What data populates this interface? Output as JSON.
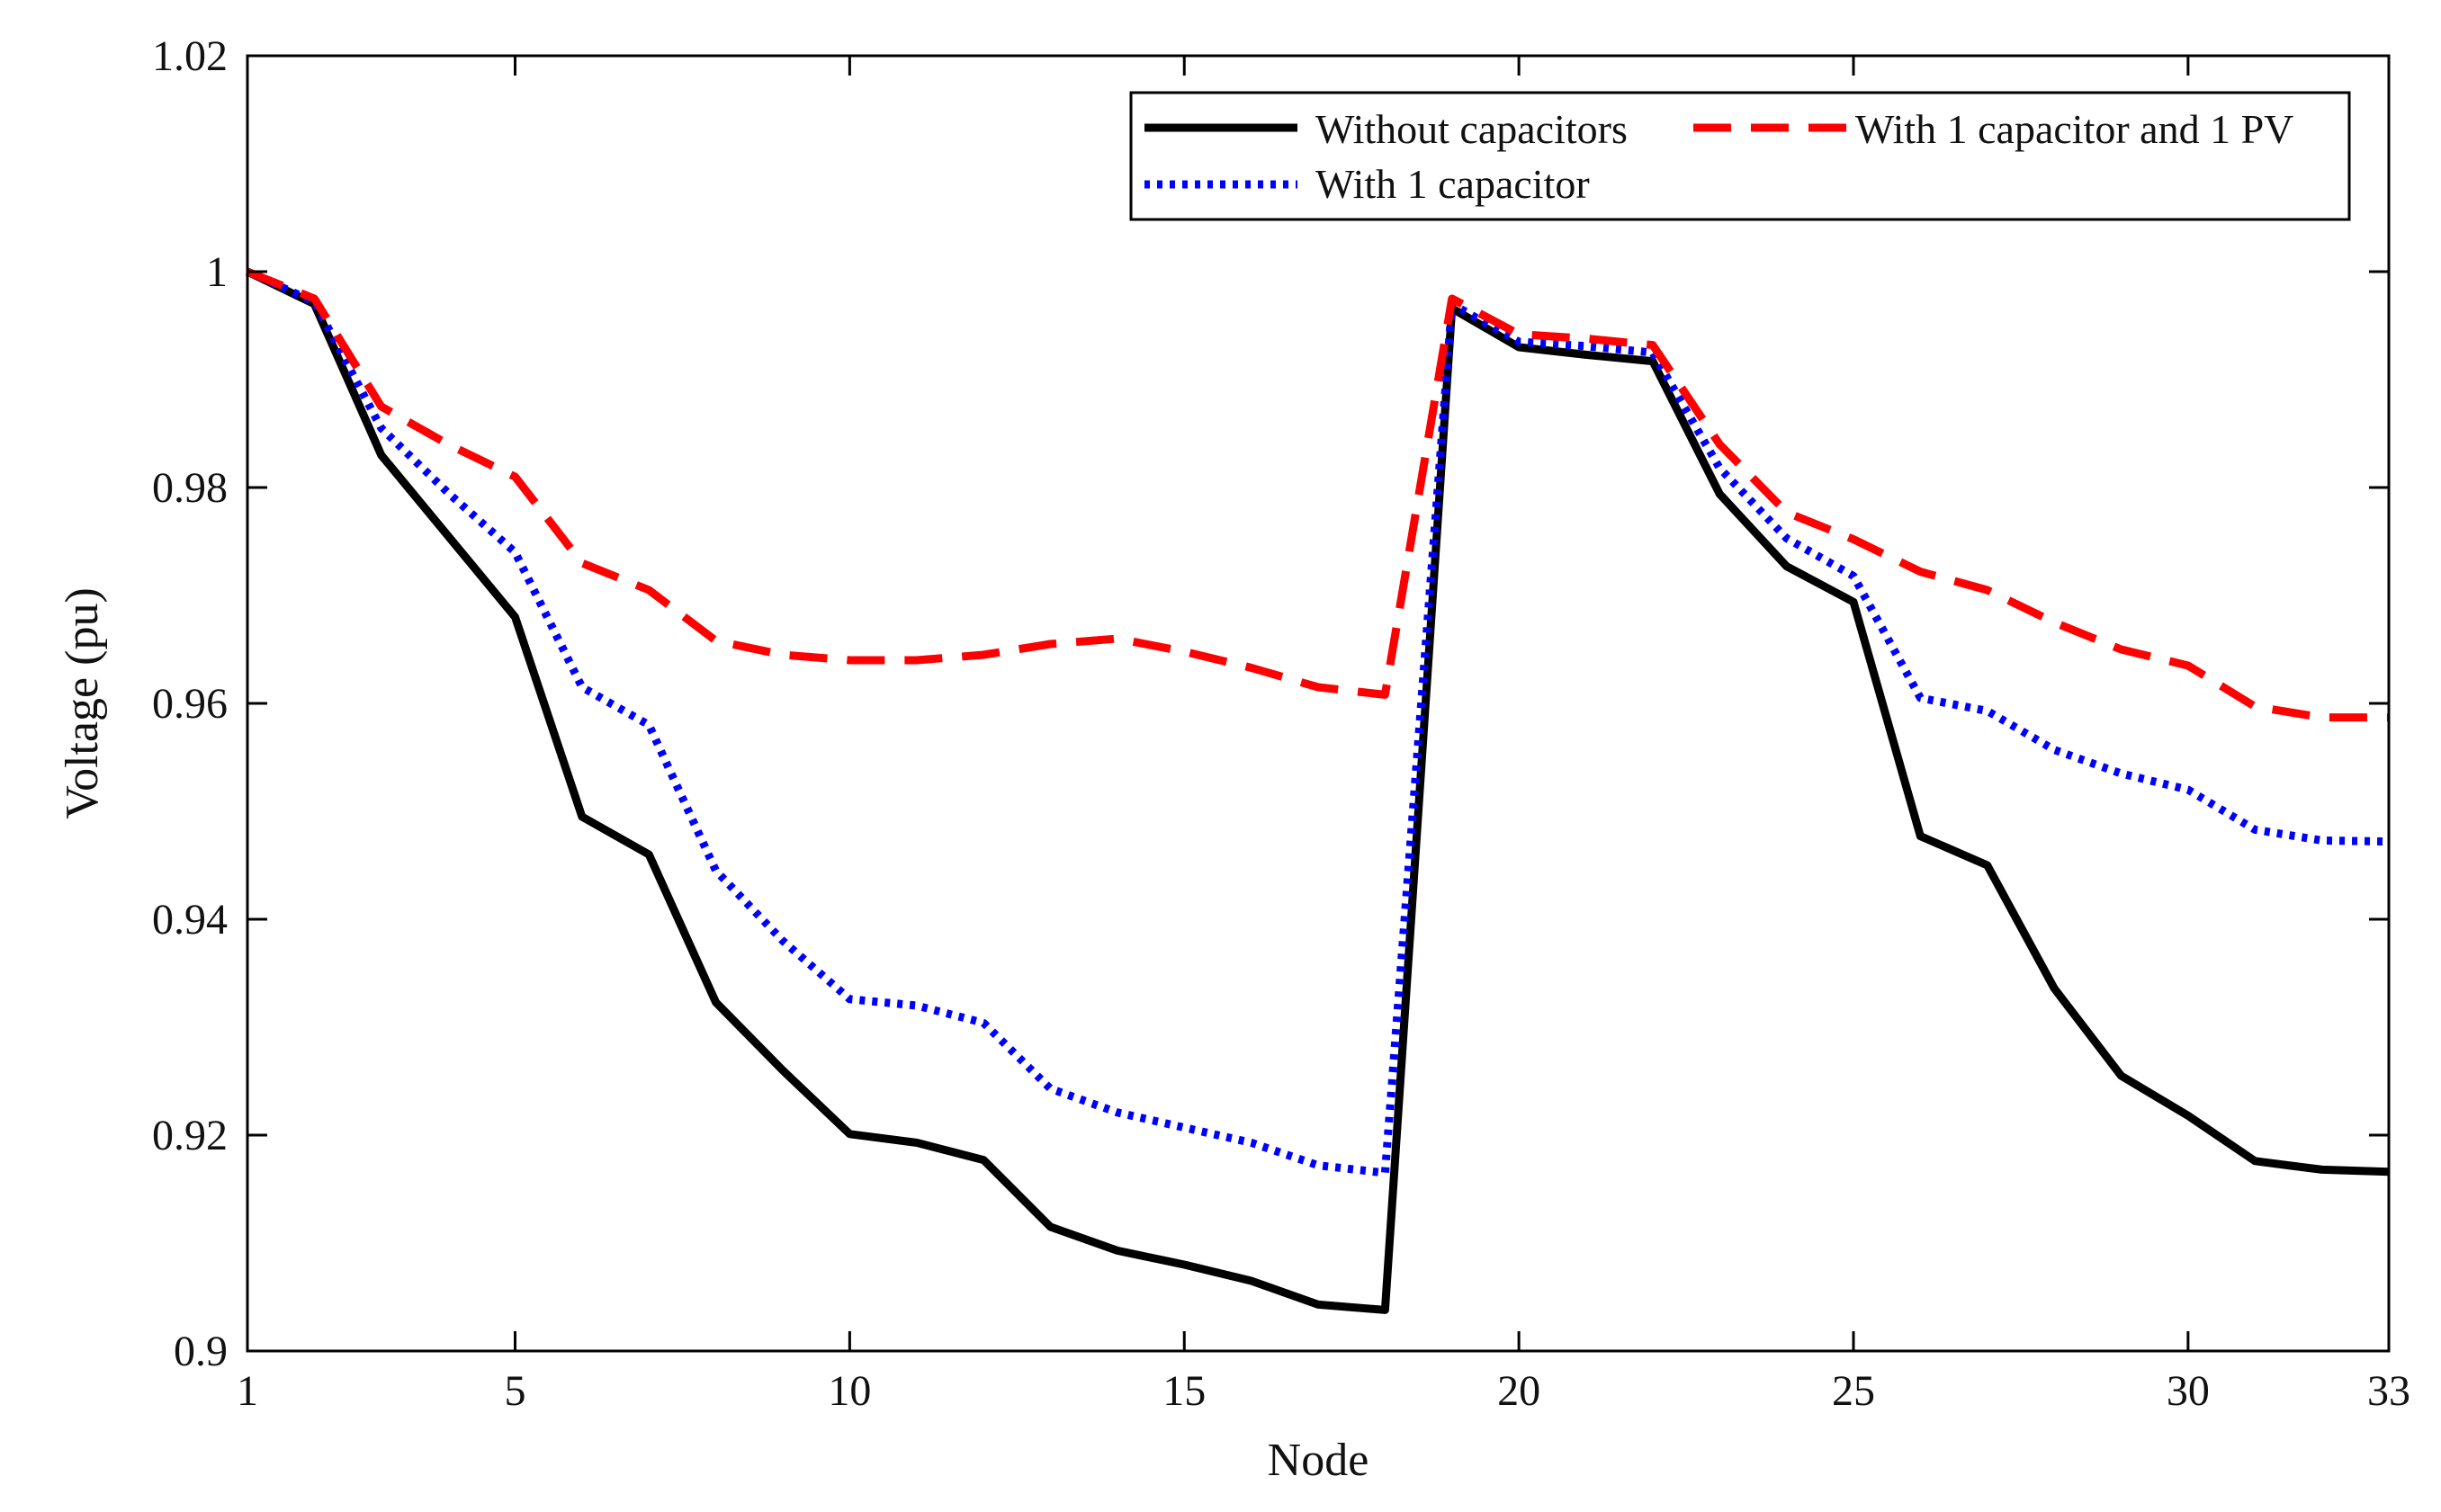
{
  "chart_data": {
    "type": "line",
    "title": "",
    "xlabel": "Node",
    "ylabel": "Voltage (pu)",
    "xlim": [
      1,
      33
    ],
    "ylim": [
      0.9,
      1.02
    ],
    "xticks": [
      1,
      5,
      10,
      15,
      20,
      25,
      30,
      33
    ],
    "xtick_labels": [
      "1",
      "5",
      "10",
      "15",
      "20",
      "25",
      "30",
      "33"
    ],
    "yticks": [
      0.9,
      0.92,
      0.94,
      0.96,
      0.98,
      1.0,
      1.02
    ],
    "ytick_labels": [
      "0.9",
      "0.92",
      "0.94",
      "0.96",
      "0.98",
      "1",
      "1.02"
    ],
    "grid": false,
    "legend_position": "top-right",
    "x": [
      1,
      2,
      3,
      4,
      5,
      6,
      7,
      8,
      9,
      10,
      11,
      12,
      13,
      14,
      15,
      16,
      17,
      18,
      19,
      20,
      21,
      22,
      23,
      24,
      25,
      26,
      27,
      28,
      29,
      30,
      31,
      32,
      33
    ],
    "series": [
      {
        "name": "Without capacitors",
        "color": "#000000",
        "style": "solid",
        "values": [
          1.0,
          0.997,
          0.983,
          0.9755,
          0.968,
          0.9495,
          0.946,
          0.9323,
          0.926,
          0.9201,
          0.9193,
          0.9177,
          0.9115,
          0.9093,
          0.908,
          0.9065,
          0.9043,
          0.9038,
          0.9966,
          0.993,
          0.9923,
          0.9917,
          0.9794,
          0.9727,
          0.9694,
          0.9477,
          0.945,
          0.9336,
          0.9255,
          0.9218,
          0.9176,
          0.9168,
          0.9166
        ]
      },
      {
        "name": "With 1 capacitor",
        "color": "#0000ff",
        "style": "dotted",
        "values": [
          1.0,
          0.9972,
          0.9855,
          0.9795,
          0.974,
          0.9615,
          0.958,
          0.9445,
          0.938,
          0.9326,
          0.932,
          0.9304,
          0.9243,
          0.9221,
          0.9207,
          0.9193,
          0.9172,
          0.9165,
          0.997,
          0.9935,
          0.9931,
          0.9925,
          0.9818,
          0.9753,
          0.9718,
          0.9605,
          0.9593,
          0.9557,
          0.9535,
          0.952,
          0.9483,
          0.9473,
          0.9472
        ]
      },
      {
        "name": "With 1 capacitor and 1 PV",
        "color": "#ff0000",
        "style": "dashed",
        "values": [
          1.0,
          0.9975,
          0.9875,
          0.984,
          0.981,
          0.973,
          0.9705,
          0.9658,
          0.9645,
          0.964,
          0.964,
          0.9645,
          0.9655,
          0.966,
          0.9648,
          0.9633,
          0.9615,
          0.9608,
          0.9975,
          0.9942,
          0.9938,
          0.9932,
          0.984,
          0.9777,
          0.9752,
          0.9722,
          0.9705,
          0.9675,
          0.965,
          0.9635,
          0.9597,
          0.9587,
          0.9587
        ]
      }
    ],
    "legend_order": [
      "Without capacitors",
      "With 1 capacitor and 1 PV",
      "With 1 capacitor"
    ]
  }
}
